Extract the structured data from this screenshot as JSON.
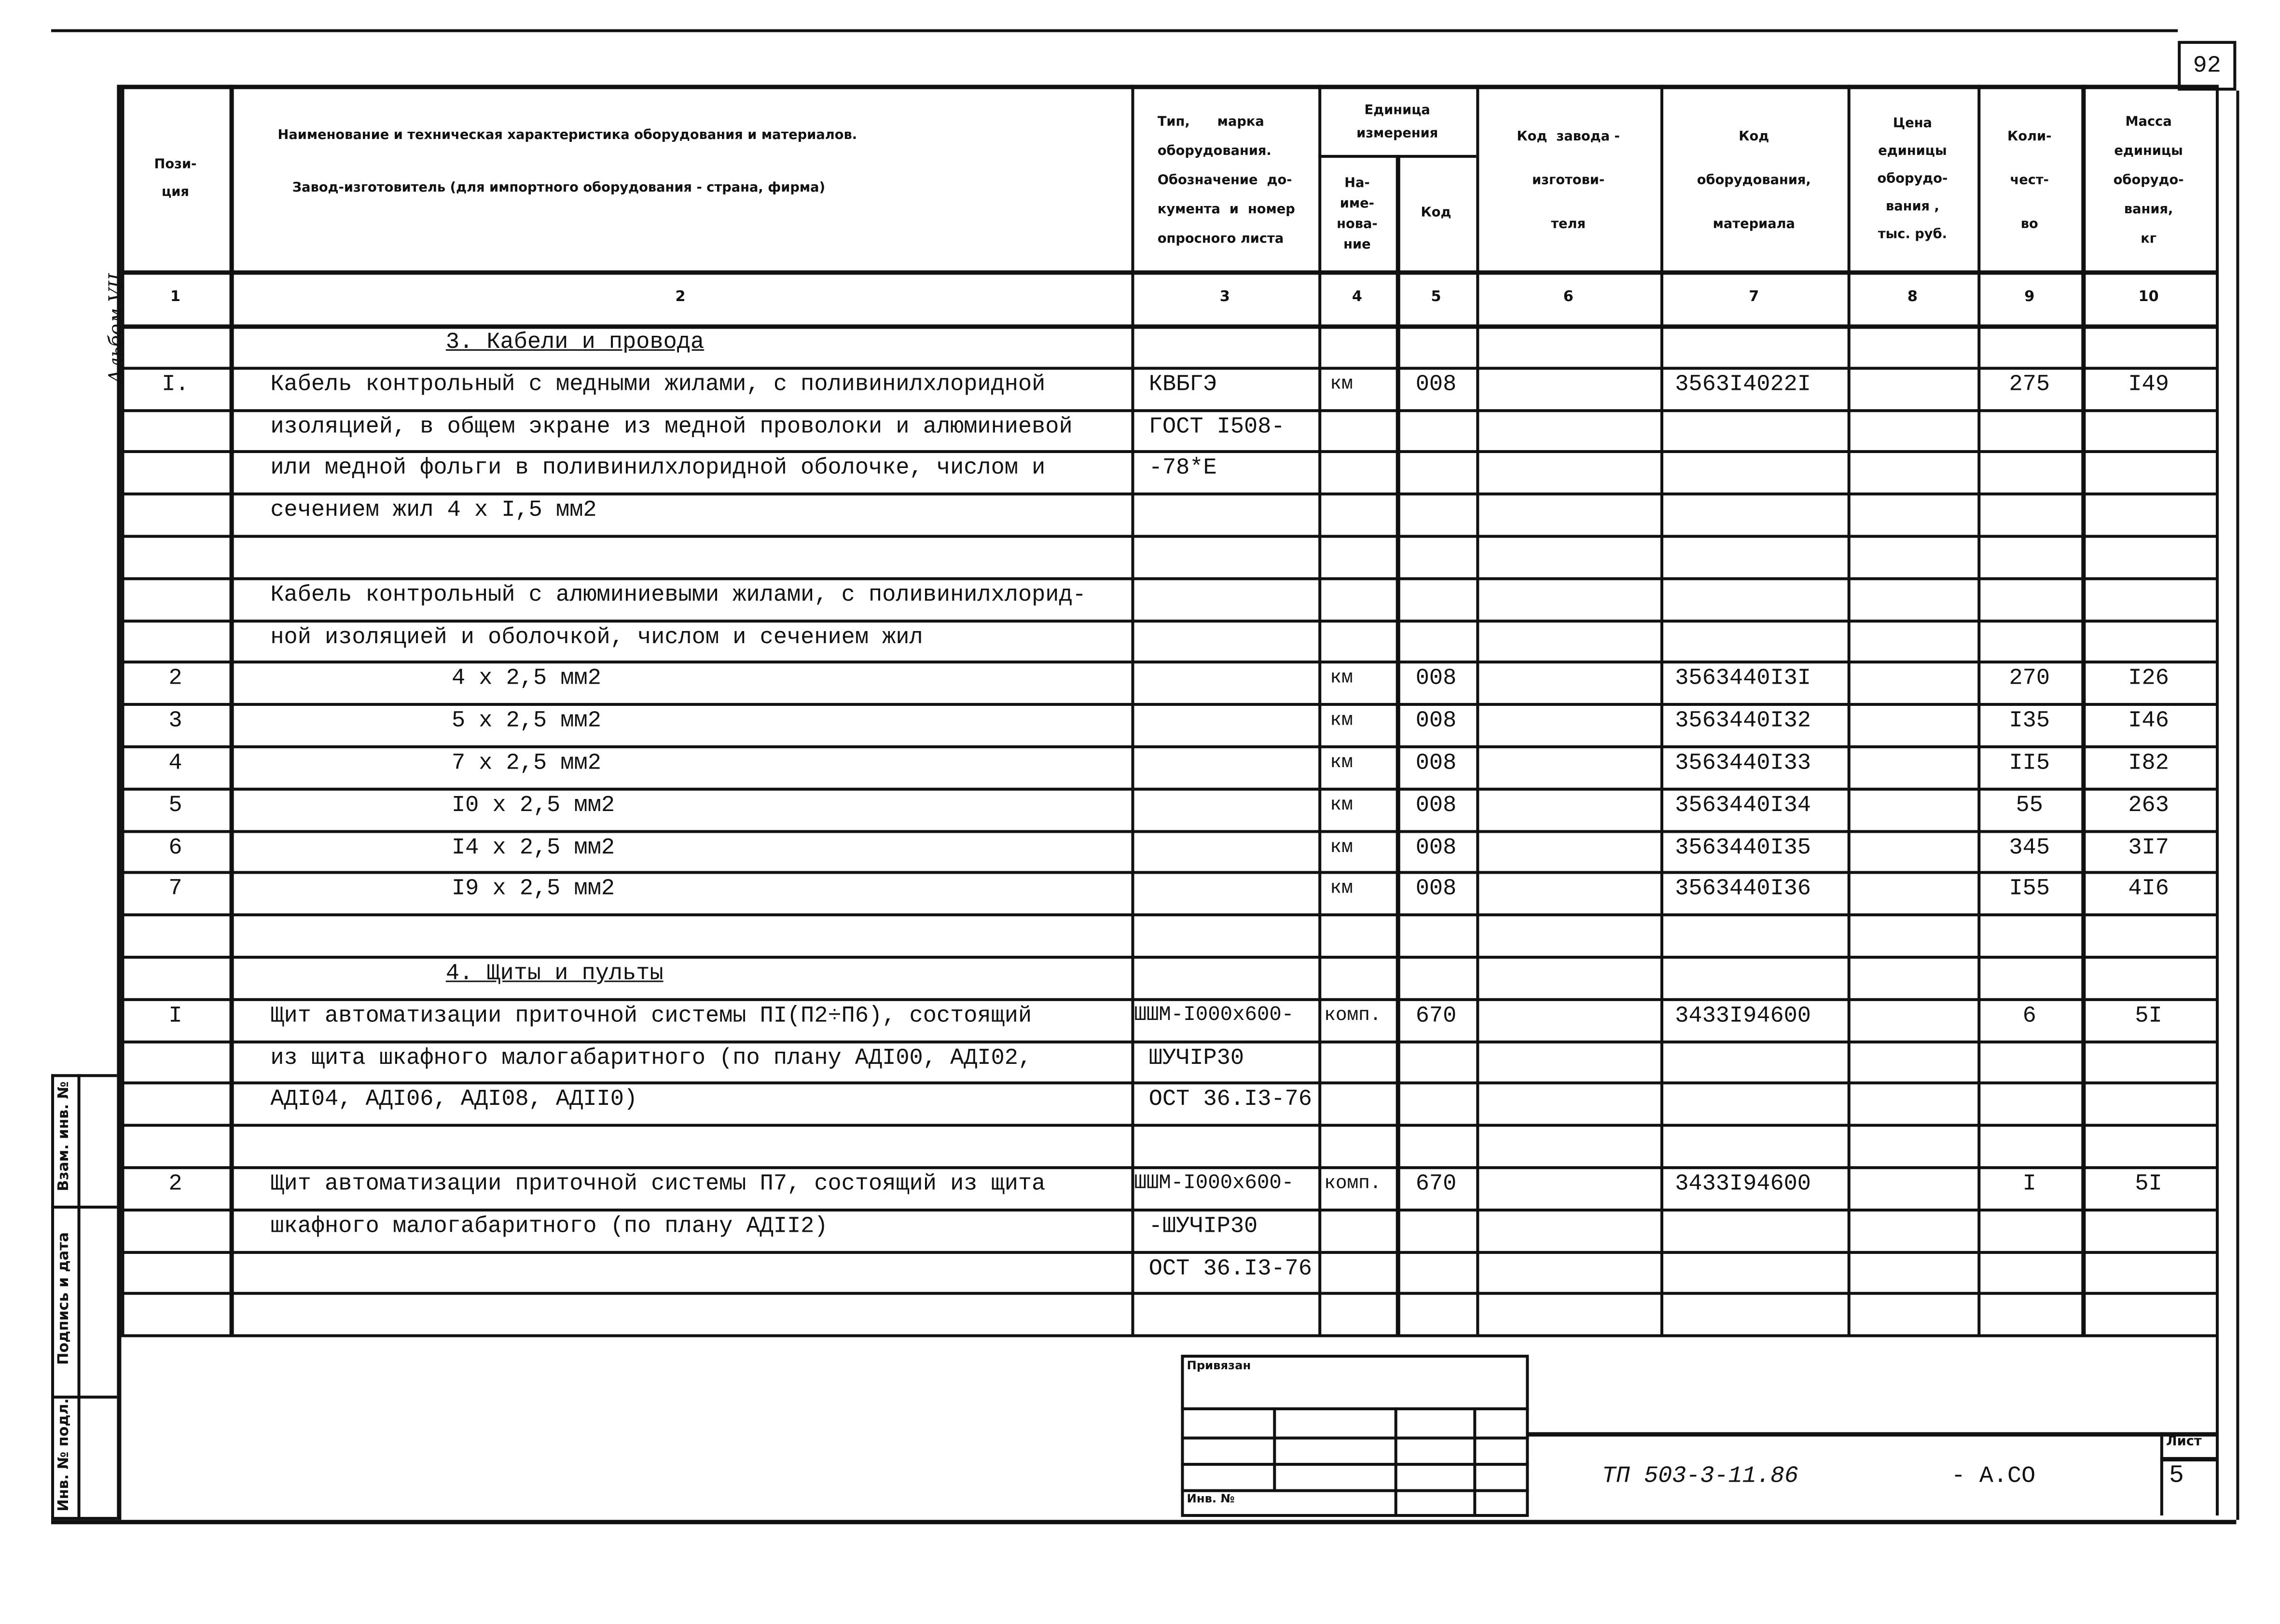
{
  "page_number": "92",
  "album_note": "Альбом VII",
  "headers": {
    "position": "Пози-\nция",
    "name_line1": "Наименование и техническая характеристика  оборудования и материалов.",
    "name_line2": "Завод-изготовитель  (для импортного оборудования -  страна, фирма)",
    "type": "Тип,      марка\nоборудования.\nОбозначение  до-\nкумента  и  номер\nопросного листа",
    "unit": "Единица\nизмерения",
    "unit_name": "На-\nиме-\nнова-\nние",
    "unit_code": "Код",
    "factory_code": "Код  завода -\nизготови-\nтеля",
    "equipment_code": "Код\nоборудования,\nматериала",
    "price": "Цена\nединицы\nоборудо-\nвания ,\nтыс. руб.",
    "quantity": "Коли-\nчест-\nво",
    "mass": "Масса\nединицы\nоборудо-\nвания,\nкг"
  },
  "column_numbers": [
    "1",
    "2",
    "3",
    "4",
    "5",
    "6",
    "7",
    "8",
    "9",
    "10"
  ],
  "rows": [
    {
      "kind": "section",
      "cells": [
        "",
        "3. Кабели и провода",
        "",
        "",
        "",
        "",
        "",
        "",
        "",
        ""
      ]
    },
    {
      "kind": "item",
      "cells": [
        "I.",
        "Кабель контрольный с медными жилами, с поливинилхлоридной",
        "КВБГЭ",
        "км",
        "008",
        "",
        "3563I4022I",
        "",
        "275",
        "I49"
      ]
    },
    {
      "kind": "item",
      "cells": [
        "",
        "изоляцией, в общем экране из медной проволоки и алюминиевой",
        "ГОСТ I508-",
        "",
        "",
        "",
        "",
        "",
        "",
        ""
      ]
    },
    {
      "kind": "item",
      "cells": [
        "",
        "или медной фольги в поливинилхлоридной оболочке, числом и",
        "-78*Е",
        "",
        "",
        "",
        "",
        "",
        "",
        ""
      ]
    },
    {
      "kind": "item",
      "cells": [
        "",
        "сечением жил 4 x I,5 мм2",
        "",
        "",
        "",
        "",
        "",
        "",
        "",
        ""
      ]
    },
    {
      "kind": "item",
      "cells": [
        "",
        "",
        "",
        "",
        "",
        "",
        "",
        "",
        "",
        ""
      ]
    },
    {
      "kind": "item",
      "cells": [
        "",
        "Кабель контрольный с алюминиевыми жилами, с поливинилхлорид-",
        "",
        "",
        "",
        "",
        "",
        "",
        "",
        ""
      ]
    },
    {
      "kind": "item",
      "cells": [
        "",
        "ной изоляцией и оболочкой, числом и сечением жил",
        "",
        "",
        "",
        "",
        "",
        "",
        "",
        ""
      ]
    },
    {
      "kind": "sub",
      "cells": [
        "2",
        "4 x 2,5 мм2",
        "",
        "км",
        "008",
        "",
        "3563440I3I",
        "",
        "270",
        "I26"
      ]
    },
    {
      "kind": "sub",
      "cells": [
        "3",
        "5 x 2,5 мм2",
        "",
        "км",
        "008",
        "",
        "3563440I32",
        "",
        "I35",
        "I46"
      ]
    },
    {
      "kind": "sub",
      "cells": [
        "4",
        "7 x 2,5 мм2",
        "",
        "км",
        "008",
        "",
        "3563440I33",
        "",
        "II5",
        "I82"
      ]
    },
    {
      "kind": "sub",
      "cells": [
        "5",
        "I0 x 2,5 мм2",
        "",
        "км",
        "008",
        "",
        "3563440I34",
        "",
        "55",
        "263"
      ]
    },
    {
      "kind": "sub",
      "cells": [
        "6",
        "I4 x 2,5 мм2",
        "",
        "км",
        "008",
        "",
        "3563440I35",
        "",
        "345",
        "3I7"
      ]
    },
    {
      "kind": "sub",
      "cells": [
        "7",
        "I9 x 2,5 мм2",
        "",
        "км",
        "008",
        "",
        "3563440I36",
        "",
        "I55",
        "4I6"
      ]
    },
    {
      "kind": "item",
      "cells": [
        "",
        "",
        "",
        "",
        "",
        "",
        "",
        "",
        "",
        ""
      ]
    },
    {
      "kind": "section",
      "cells": [
        "",
        "4. Щиты и пульты",
        "",
        "",
        "",
        "",
        "",
        "",
        "",
        ""
      ]
    },
    {
      "kind": "item",
      "cells": [
        "I",
        "Щит автоматизации приточной системы ПI(П2÷П6), состоящий",
        "ШШМ-I000x600-",
        "комп.",
        "670",
        "",
        "3433I94600",
        "",
        "6",
        "5I"
      ]
    },
    {
      "kind": "item",
      "cells": [
        "",
        "из щита шкафного малогабаритного (по плану АДI00, АДI02,",
        "ШУЧIР30",
        "",
        "",
        "",
        "",
        "",
        "",
        ""
      ]
    },
    {
      "kind": "item",
      "cells": [
        "",
        "АДI04, АДI06, АДI08, АДII0)",
        "ОСТ 36.I3-76",
        "",
        "",
        "",
        "",
        "",
        "",
        ""
      ]
    },
    {
      "kind": "item",
      "cells": [
        "",
        "",
        "",
        "",
        "",
        "",
        "",
        "",
        "",
        ""
      ]
    },
    {
      "kind": "item",
      "cells": [
        "2",
        "Щит автоматизации приточной системы П7, состоящий из щита",
        "ШШМ-I000x600-",
        "комп.",
        "670",
        "",
        "3433I94600",
        "",
        "I",
        "5I"
      ]
    },
    {
      "kind": "item",
      "cells": [
        "",
        "шкафного малогабаритного (по плану АДII2)",
        "-ШУЧIР30",
        "",
        "",
        "",
        "",
        "",
        "",
        ""
      ]
    },
    {
      "kind": "item",
      "cells": [
        "",
        "",
        "ОСТ 36.I3-76",
        "",
        "",
        "",
        "",
        "",
        "",
        ""
      ]
    },
    {
      "kind": "item",
      "cells": [
        "",
        "",
        "",
        "",
        "",
        "",
        "",
        "",
        "",
        ""
      ]
    }
  ],
  "margin": {
    "replaced_inv": "Взам. инв. №",
    "signature_date": "Подпись и дата",
    "inv_original": "Инв. № подл."
  },
  "stamp": {
    "bound": "Привязан",
    "inv_no": "Инв. №"
  },
  "title_block": {
    "designation": "ТП 503-3-11.86",
    "suffix": "- А.СО",
    "sheet_label": "Лист",
    "sheet_number": "5"
  }
}
